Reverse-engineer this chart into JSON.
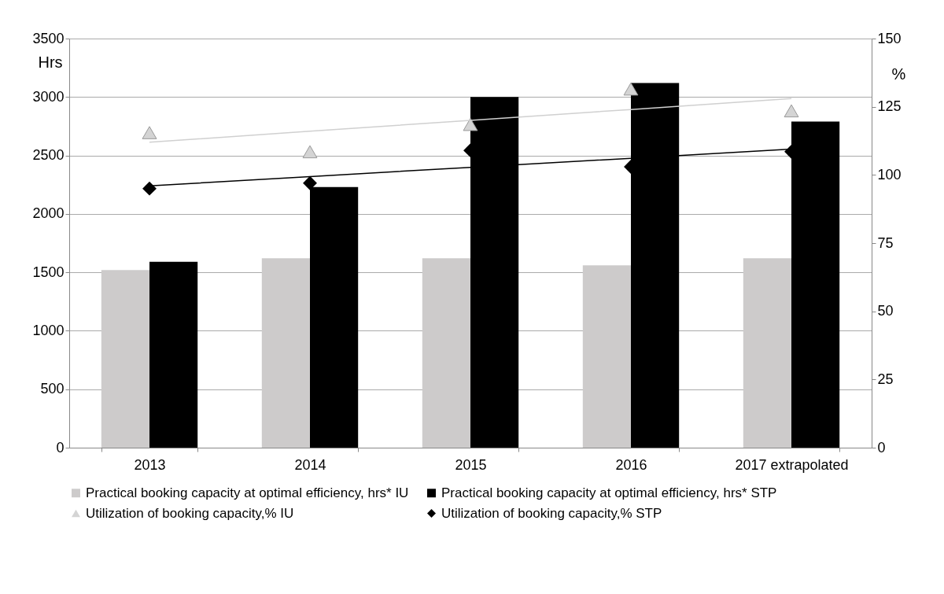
{
  "chart_data": {
    "type": "bar",
    "categories": [
      "2013",
      "2014",
      "2015",
      "2016",
      "2017 extrapolated"
    ],
    "ylabel": "Hrs",
    "y2label": "%",
    "ylim": [
      0,
      3500
    ],
    "yticks": [
      0,
      500,
      1000,
      1500,
      2000,
      2500,
      3000,
      3500
    ],
    "y2lim": [
      0,
      150
    ],
    "y2ticks": [
      0,
      25,
      50,
      75,
      100,
      125,
      150
    ],
    "grid": "y",
    "legend": "bottom",
    "series": [
      {
        "name": "Practical booking capacity at optimal efficiency, hrs* IU",
        "color": "#cdcbcb",
        "values": [
          1520,
          1620,
          1620,
          1560,
          1620
        ]
      },
      {
        "name": "Practical booking capacity at optimal efficiency, hrs* STP",
        "color": "#000000",
        "values": [
          1590,
          2230,
          3000,
          3120,
          2790
        ]
      },
      {
        "name": "Utilization of booking capacity,% IU",
        "type": "scatter",
        "marker": "triangle",
        "axis": "y2",
        "color": "#d4d4d4",
        "values": [
          115.5,
          108.5,
          118.5,
          131.5,
          123.5
        ]
      },
      {
        "name": "Utilization of booking capacity,% STP",
        "type": "scatter",
        "marker": "diamond",
        "axis": "y2",
        "color": "#000000",
        "values": [
          95,
          97,
          109,
          103,
          108.5
        ]
      },
      {
        "type": "line",
        "axis": "y2",
        "color": "#d0d0d0",
        "line_style": "solid",
        "values": [
          112,
          116,
          120,
          124,
          128
        ]
      },
      {
        "type": "line",
        "axis": "y2",
        "color": "#000000",
        "line_style": "solid",
        "values": [
          96,
          99.4,
          102.8,
          106.1,
          109.5
        ]
      }
    ]
  }
}
